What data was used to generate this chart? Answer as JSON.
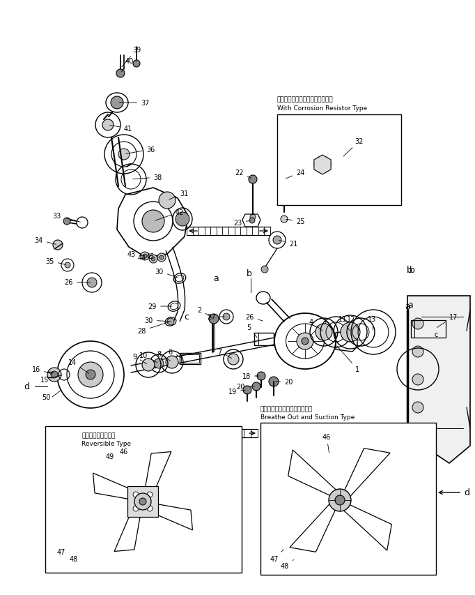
{
  "bg_color": "#ffffff",
  "fig_width": 6.82,
  "fig_height": 8.54,
  "dpi": 100,
  "line_color": "#000000",
  "text_color": "#000000",
  "box1_label_jp": "コロージョンレジスタ付きタイプ",
  "box1_label_en": "With Corrosion Resistor Type",
  "box2_label_jp": "吹き出しおよび吸い込みタイプ",
  "box2_label_en": "Breathe Out and Suction Type",
  "box3_label_jp": "リバーシブルタイプ",
  "box3_label_en": "Reversible Type"
}
